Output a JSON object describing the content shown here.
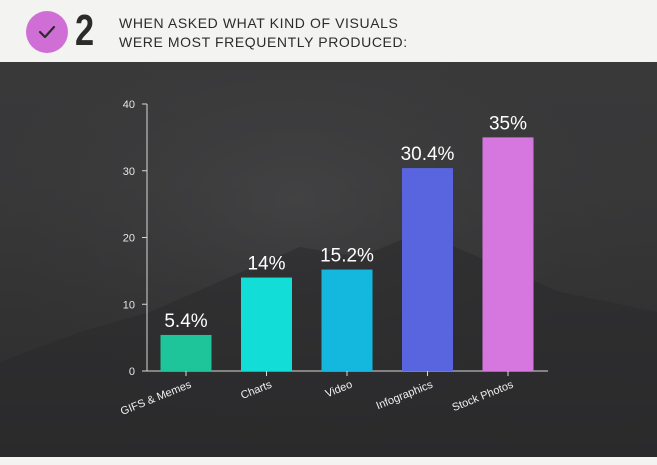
{
  "header": {
    "step_number": "2",
    "question_line1": "WHEN ASKED WHAT KIND OF VISUALS",
    "question_line2": "WERE MOST FREQUENTLY PRODUCED:",
    "badge_icon": "checkmark-icon",
    "badge_color": "#cf6fd6"
  },
  "chart_data": {
    "type": "bar",
    "categories": [
      "GIFS & Memes",
      "Charts",
      "Video",
      "Infographics",
      "Stock Photos"
    ],
    "values": [
      5.4,
      14,
      15.2,
      30.4,
      35
    ],
    "data_labels": [
      "5.4%",
      "14%",
      "15.2%",
      "30.4%",
      "35%"
    ],
    "colors": [
      "#1ec49a",
      "#12ddd6",
      "#14b8df",
      "#5865de",
      "#d677df"
    ],
    "ylim": [
      0,
      40
    ],
    "yticks": [
      0,
      10,
      20,
      30,
      40
    ],
    "grid": false,
    "legend": "none"
  }
}
